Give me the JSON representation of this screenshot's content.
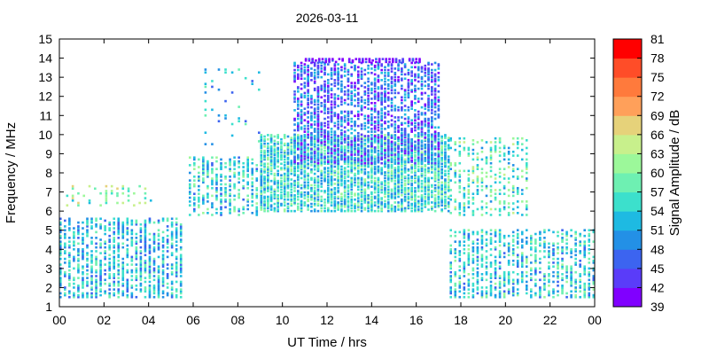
{
  "chart_data": {
    "type": "heatmap",
    "title": "2026-03-11",
    "xlabel": "UT Time / hrs",
    "ylabel": "Frequency / MHz",
    "colorbar_label": "Signal Amplitude / dB",
    "xlim": [
      0,
      24
    ],
    "ylim": [
      1,
      15
    ],
    "x_ticks": [
      "00",
      "02",
      "04",
      "06",
      "08",
      "10",
      "12",
      "14",
      "16",
      "18",
      "20",
      "22",
      "00"
    ],
    "y_ticks": [
      "1",
      "2",
      "3",
      "4",
      "5",
      "6",
      "7",
      "8",
      "9",
      "10",
      "11",
      "12",
      "13",
      "14",
      "15"
    ],
    "colorbar": {
      "range": [
        39,
        81
      ],
      "ticks": [
        "39",
        "42",
        "45",
        "48",
        "51",
        "54",
        "57",
        "60",
        "63",
        "66",
        "69",
        "72",
        "75",
        "78",
        "81"
      ],
      "colors": [
        "#8000ff",
        "#5a3cf9",
        "#3c64f0",
        "#2390e6",
        "#1ebae2",
        "#3ce0cc",
        "#6ef0b2",
        "#9cf89a",
        "#c8f08c",
        "#e6d27a",
        "#ffa05a",
        "#ff7a3c",
        "#ff4d28",
        "#ff0000"
      ]
    },
    "regions": [
      {
        "x": [
          0.0,
          5.5
        ],
        "y": [
          1.5,
          5.6
        ],
        "step": 0.2,
        "density": 0.62,
        "amplitude": 53
      },
      {
        "x": [
          0.3,
          4.3
        ],
        "y": [
          6.3,
          7.3
        ],
        "step": 0.25,
        "density": 0.35,
        "amplitude": 60
      },
      {
        "x": [
          5.8,
          9.0
        ],
        "y": [
          5.8,
          8.8
        ],
        "step": 0.2,
        "density": 0.55,
        "amplitude": 54
      },
      {
        "x": [
          9.0,
          17.5
        ],
        "y": [
          6.0,
          10.0
        ],
        "step": 0.15,
        "density": 0.65,
        "amplitude": 55
      },
      {
        "x": [
          10.5,
          17.0
        ],
        "y": [
          8.5,
          13.8
        ],
        "step": 0.15,
        "density": 0.45,
        "amplitude": 47
      },
      {
        "x": [
          11.0,
          16.2
        ],
        "y": [
          13.8,
          14.0
        ],
        "step": 0.15,
        "density": 0.7,
        "amplitude": 40
      },
      {
        "x": [
          17.5,
          21.0
        ],
        "y": [
          5.8,
          9.8
        ],
        "step": 0.2,
        "density": 0.35,
        "amplitude": 57
      },
      {
        "x": [
          17.5,
          24.0
        ],
        "y": [
          1.5,
          5.0
        ],
        "step": 0.2,
        "density": 0.55,
        "amplitude": 54
      },
      {
        "x": [
          6.5,
          9.0
        ],
        "y": [
          9.5,
          13.5
        ],
        "step": 0.3,
        "density": 0.15,
        "amplitude": 52
      }
    ]
  }
}
